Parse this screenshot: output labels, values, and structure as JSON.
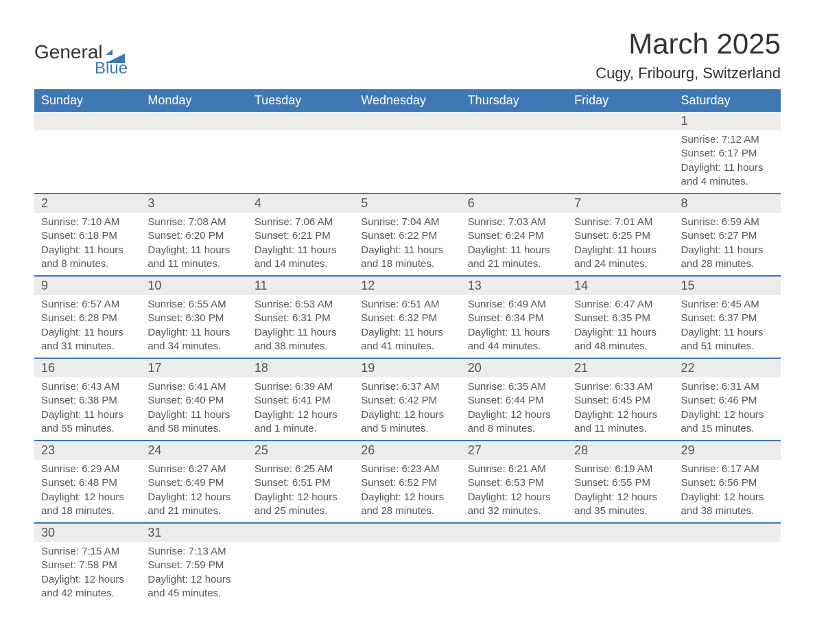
{
  "logo": {
    "general": "General",
    "blue": "Blue",
    "shape_color": "#3f78b5"
  },
  "title": {
    "month": "March 2025",
    "location": "Cugy, Fribourg, Switzerland"
  },
  "colors": {
    "header_bg": "#3f78b5",
    "header_text": "#ffffff",
    "daynum_bg": "#ececec",
    "body_text": "#555555",
    "page_bg": "#ffffff",
    "row_border": "#3f78b5"
  },
  "typography": {
    "month_title_fontsize": 42,
    "location_fontsize": 22,
    "day_header_fontsize": 18,
    "daynum_fontsize": 18,
    "detail_fontsize": 15,
    "font_family": "Arial"
  },
  "day_headers": [
    "Sunday",
    "Monday",
    "Tuesday",
    "Wednesday",
    "Thursday",
    "Friday",
    "Saturday"
  ],
  "labels": {
    "sunrise": "Sunrise:",
    "sunset": "Sunset:",
    "daylight": "Daylight:"
  },
  "weeks": [
    [
      null,
      null,
      null,
      null,
      null,
      null,
      {
        "n": "1",
        "sunrise": "7:12 AM",
        "sunset": "6:17 PM",
        "daylight": "11 hours and 4 minutes."
      }
    ],
    [
      {
        "n": "2",
        "sunrise": "7:10 AM",
        "sunset": "6:18 PM",
        "daylight": "11 hours and 8 minutes."
      },
      {
        "n": "3",
        "sunrise": "7:08 AM",
        "sunset": "6:20 PM",
        "daylight": "11 hours and 11 minutes."
      },
      {
        "n": "4",
        "sunrise": "7:06 AM",
        "sunset": "6:21 PM",
        "daylight": "11 hours and 14 minutes."
      },
      {
        "n": "5",
        "sunrise": "7:04 AM",
        "sunset": "6:22 PM",
        "daylight": "11 hours and 18 minutes."
      },
      {
        "n": "6",
        "sunrise": "7:03 AM",
        "sunset": "6:24 PM",
        "daylight": "11 hours and 21 minutes."
      },
      {
        "n": "7",
        "sunrise": "7:01 AM",
        "sunset": "6:25 PM",
        "daylight": "11 hours and 24 minutes."
      },
      {
        "n": "8",
        "sunrise": "6:59 AM",
        "sunset": "6:27 PM",
        "daylight": "11 hours and 28 minutes."
      }
    ],
    [
      {
        "n": "9",
        "sunrise": "6:57 AM",
        "sunset": "6:28 PM",
        "daylight": "11 hours and 31 minutes."
      },
      {
        "n": "10",
        "sunrise": "6:55 AM",
        "sunset": "6:30 PM",
        "daylight": "11 hours and 34 minutes."
      },
      {
        "n": "11",
        "sunrise": "6:53 AM",
        "sunset": "6:31 PM",
        "daylight": "11 hours and 38 minutes."
      },
      {
        "n": "12",
        "sunrise": "6:51 AM",
        "sunset": "6:32 PM",
        "daylight": "11 hours and 41 minutes."
      },
      {
        "n": "13",
        "sunrise": "6:49 AM",
        "sunset": "6:34 PM",
        "daylight": "11 hours and 44 minutes."
      },
      {
        "n": "14",
        "sunrise": "6:47 AM",
        "sunset": "6:35 PM",
        "daylight": "11 hours and 48 minutes."
      },
      {
        "n": "15",
        "sunrise": "6:45 AM",
        "sunset": "6:37 PM",
        "daylight": "11 hours and 51 minutes."
      }
    ],
    [
      {
        "n": "16",
        "sunrise": "6:43 AM",
        "sunset": "6:38 PM",
        "daylight": "11 hours and 55 minutes."
      },
      {
        "n": "17",
        "sunrise": "6:41 AM",
        "sunset": "6:40 PM",
        "daylight": "11 hours and 58 minutes."
      },
      {
        "n": "18",
        "sunrise": "6:39 AM",
        "sunset": "6:41 PM",
        "daylight": "12 hours and 1 minute."
      },
      {
        "n": "19",
        "sunrise": "6:37 AM",
        "sunset": "6:42 PM",
        "daylight": "12 hours and 5 minutes."
      },
      {
        "n": "20",
        "sunrise": "6:35 AM",
        "sunset": "6:44 PM",
        "daylight": "12 hours and 8 minutes."
      },
      {
        "n": "21",
        "sunrise": "6:33 AM",
        "sunset": "6:45 PM",
        "daylight": "12 hours and 11 minutes."
      },
      {
        "n": "22",
        "sunrise": "6:31 AM",
        "sunset": "6:46 PM",
        "daylight": "12 hours and 15 minutes."
      }
    ],
    [
      {
        "n": "23",
        "sunrise": "6:29 AM",
        "sunset": "6:48 PM",
        "daylight": "12 hours and 18 minutes."
      },
      {
        "n": "24",
        "sunrise": "6:27 AM",
        "sunset": "6:49 PM",
        "daylight": "12 hours and 21 minutes."
      },
      {
        "n": "25",
        "sunrise": "6:25 AM",
        "sunset": "6:51 PM",
        "daylight": "12 hours and 25 minutes."
      },
      {
        "n": "26",
        "sunrise": "6:23 AM",
        "sunset": "6:52 PM",
        "daylight": "12 hours and 28 minutes."
      },
      {
        "n": "27",
        "sunrise": "6:21 AM",
        "sunset": "6:53 PM",
        "daylight": "12 hours and 32 minutes."
      },
      {
        "n": "28",
        "sunrise": "6:19 AM",
        "sunset": "6:55 PM",
        "daylight": "12 hours and 35 minutes."
      },
      {
        "n": "29",
        "sunrise": "6:17 AM",
        "sunset": "6:56 PM",
        "daylight": "12 hours and 38 minutes."
      }
    ],
    [
      {
        "n": "30",
        "sunrise": "7:15 AM",
        "sunset": "7:58 PM",
        "daylight": "12 hours and 42 minutes."
      },
      {
        "n": "31",
        "sunrise": "7:13 AM",
        "sunset": "7:59 PM",
        "daylight": "12 hours and 45 minutes."
      },
      null,
      null,
      null,
      null,
      null
    ]
  ]
}
